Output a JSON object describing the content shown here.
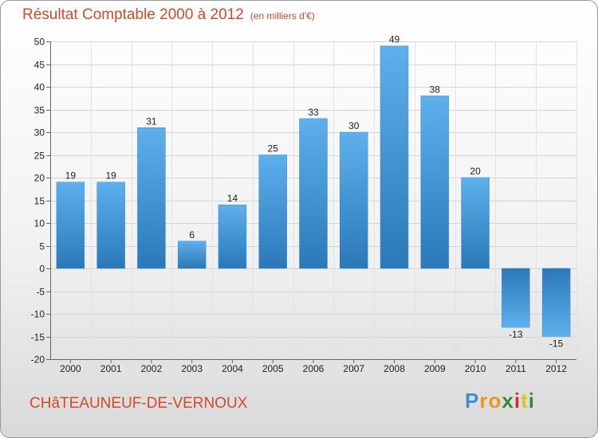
{
  "chart_data": {
    "type": "bar",
    "title": "Résultat Comptable 2000 à 2012",
    "subtitle": "(en milliers d'€)",
    "categories": [
      "2000",
      "2001",
      "2002",
      "2003",
      "2004",
      "2005",
      "2006",
      "2007",
      "2008",
      "2009",
      "2010",
      "2011",
      "2012"
    ],
    "values": [
      19,
      19,
      31,
      6,
      14,
      25,
      33,
      30,
      49,
      38,
      20,
      -13,
      -15
    ],
    "data_labels": [
      "19",
      "19",
      "31",
      "6",
      "14",
      "25",
      "33",
      "30",
      "49",
      "38",
      "20",
      "-13",
      "-15"
    ],
    "ylim": [
      -20,
      50
    ],
    "yticks": [
      50,
      45,
      40,
      35,
      30,
      25,
      20,
      15,
      10,
      5,
      0,
      -5,
      -10,
      -15,
      -20
    ],
    "ytick_labels": [
      "50",
      "45",
      "40",
      "35",
      "30",
      "25",
      "20",
      "15",
      "10",
      "5",
      "0",
      "-5",
      "-10",
      "-15",
      "-20"
    ],
    "xlabel": "",
    "ylabel": "",
    "bar_color": "#3a90d6",
    "grid": true
  },
  "place_name": "CHâTEAUNEUF-DE-VERNOUX",
  "logo": {
    "letters": [
      "P",
      "r",
      "o",
      "x",
      "i",
      "t",
      "i"
    ],
    "colors": [
      "#3b8fd0",
      "#e89a1c",
      "#e89a1c",
      "#2f8e35",
      "#d8262c",
      "#e2c21e",
      "#2f8e35"
    ]
  }
}
